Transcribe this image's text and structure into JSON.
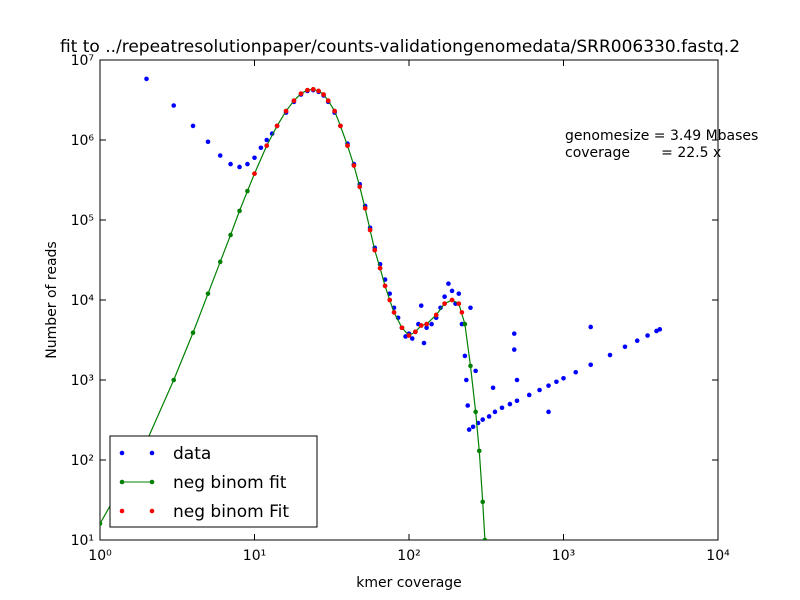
{
  "chart_data": {
    "type": "scatter",
    "title": "fit to ../repeatresolutionpaper/counts-validationgenomedata/SRR006330.fastq.2",
    "x_label": "kmer coverage",
    "y_label": "Number of reads",
    "annotations": [
      "genomesize = 3.49 Mbases",
      "coverage       = 22.5 x"
    ],
    "xscale": "log",
    "yscale": "log",
    "legend": "lower left",
    "xlim": [
      1,
      10000
    ],
    "ylim": [
      10,
      10000000
    ],
    "xticks": [
      {
        "value": 1,
        "label": "10⁰"
      },
      {
        "value": 10,
        "label": "10¹"
      },
      {
        "value": 100,
        "label": "10²"
      },
      {
        "value": 1000,
        "label": "10³"
      },
      {
        "value": 10000,
        "label": "10⁴"
      }
    ],
    "yticks": [
      {
        "value": 10,
        "label": "10¹"
      },
      {
        "value": 100,
        "label": "10²"
      },
      {
        "value": 1000,
        "label": "10³"
      },
      {
        "value": 10000,
        "label": "10⁴"
      },
      {
        "value": 100000,
        "label": "10⁵"
      },
      {
        "value": 1000000,
        "label": "10⁶"
      },
      {
        "value": 10000000,
        "label": "10⁷"
      }
    ],
    "series": [
      {
        "name": "data",
        "color": "#0000ff",
        "style": "dots",
        "x": [
          2,
          3,
          4,
          5,
          6,
          7,
          8,
          9,
          10,
          11,
          12,
          13,
          14,
          16,
          18,
          20,
          22,
          24,
          26,
          28,
          30,
          33,
          36,
          40,
          44,
          48,
          52,
          56,
          60,
          65,
          70,
          75,
          80,
          85,
          90,
          95,
          100,
          105,
          110,
          115,
          120,
          125,
          130,
          140,
          150,
          160,
          170,
          180,
          190,
          200,
          210,
          220,
          230,
          235,
          240,
          245,
          260,
          280,
          300,
          330,
          360,
          400,
          450,
          500,
          600,
          700,
          800,
          900,
          1000,
          1200,
          1500,
          2000,
          2500,
          3000,
          3500,
          4000,
          4200,
          480,
          480,
          350,
          500,
          800,
          1500,
          250,
          270
        ],
        "values": [
          5800000,
          2700000,
          1500000,
          950000,
          640000,
          500000,
          460000,
          500000,
          600000,
          800000,
          1000000,
          1200000,
          1500000,
          2200000,
          3000000,
          3700000,
          4100000,
          4200000,
          4000000,
          3600000,
          3000000,
          2200000,
          1500000,
          900000,
          500000,
          280000,
          150000,
          80000,
          45000,
          28000,
          18000,
          12000,
          8000,
          6000,
          4500,
          3500,
          3800,
          3300,
          4000,
          5000,
          8500,
          2900,
          4500,
          5000,
          6000,
          8000,
          11000,
          16000,
          13000,
          9000,
          12000,
          5000,
          2000,
          1000,
          480,
          240,
          260,
          290,
          320,
          350,
          400,
          450,
          500,
          550,
          650,
          750,
          850,
          950,
          1050,
          1250,
          1550,
          2050,
          2600,
          3100,
          3600,
          4100,
          4300,
          3800,
          2400,
          800,
          1000,
          400,
          4600,
          8000,
          1300
        ]
      },
      {
        "name": "neg binom fit",
        "color": "#008000",
        "style": "line",
        "x": [
          1,
          2,
          3,
          4,
          5,
          6,
          7,
          8,
          9,
          10,
          12,
          14,
          16,
          18,
          20,
          22,
          24,
          26,
          28,
          30,
          33,
          36,
          40,
          44,
          48,
          52,
          56,
          60,
          65,
          70,
          75,
          80,
          90,
          100,
          110,
          120,
          130,
          150,
          170,
          190,
          210,
          230,
          250,
          270,
          285,
          300,
          310
        ],
        "values": [
          16,
          170,
          1000,
          3900,
          12000,
          30000,
          65000,
          130000,
          230000,
          380000,
          850000,
          1500000,
          2300000,
          3100000,
          3800000,
          4200000,
          4300000,
          4100000,
          3700000,
          3100000,
          2300000,
          1500000,
          850000,
          480000,
          260000,
          140000,
          75000,
          42000,
          25000,
          15000,
          10000,
          7000,
          4500,
          3600,
          4000,
          4800,
          5000,
          6500,
          9000,
          10000,
          9000,
          5000,
          1500,
          400,
          130,
          30,
          10
        ]
      },
      {
        "name": "neg binom Fit",
        "color": "#ff0000",
        "style": "dots",
        "x": [
          10,
          12,
          14,
          16,
          18,
          20,
          22,
          24,
          26,
          28,
          30,
          33,
          36,
          40,
          44,
          48,
          52,
          56,
          60,
          65,
          70,
          75,
          80,
          90,
          100,
          110,
          120,
          130,
          150,
          170,
          190,
          210,
          220
        ],
        "values": [
          380000,
          850000,
          1500000,
          2300000,
          3100000,
          3800000,
          4200000,
          4300000,
          4100000,
          3700000,
          3100000,
          2300000,
          1500000,
          850000,
          480000,
          260000,
          140000,
          75000,
          42000,
          25000,
          15000,
          10000,
          7000,
          4500,
          3600,
          4000,
          4800,
          5000,
          6500,
          9000,
          10000,
          9000,
          7000
        ]
      }
    ]
  }
}
